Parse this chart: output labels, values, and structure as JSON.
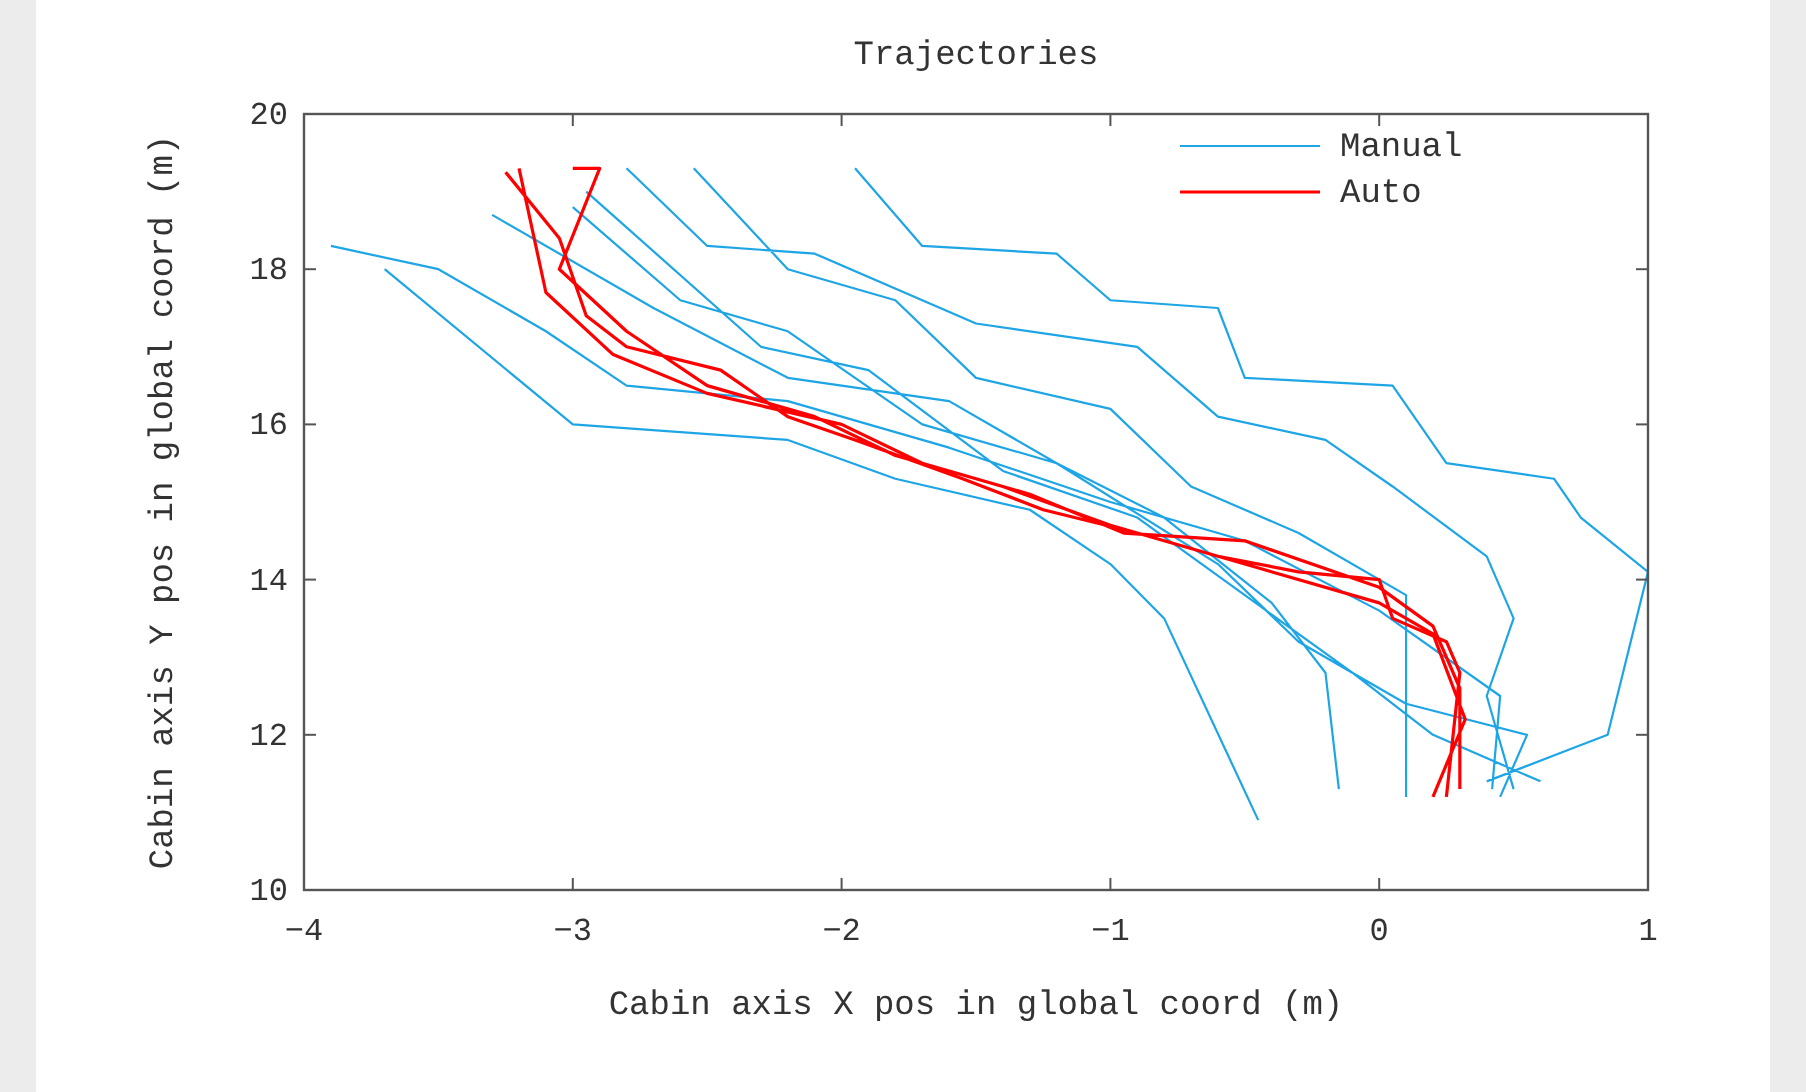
{
  "chart_data": {
    "type": "line",
    "title": "Trajectories",
    "xlabel": "Cabin axis X pos in global coord (m)",
    "ylabel": "Cabin axis Y pos in global coord (m)",
    "xlim": [
      -4,
      1
    ],
    "xticks": [
      -4,
      -3,
      -2,
      -1,
      0,
      1
    ],
    "ylim": [
      10,
      20
    ],
    "yticks": [
      10,
      12,
      14,
      16,
      18,
      20
    ],
    "grid": false,
    "legend": "top right",
    "line_style": "solid",
    "marker": "none",
    "series": [
      {
        "name": "Manual",
        "color": "#1ea5e6",
        "x": [
          -1.95,
          -1.7,
          -1.2,
          -1.0,
          -0.6,
          -0.5,
          0.05,
          0.25,
          0.65,
          0.75,
          1.0,
          0.85,
          0.7,
          0.4,
          null,
          -2.8,
          -2.5,
          -2.1,
          -1.5,
          -0.9,
          -0.6,
          -0.2,
          0.05,
          0.4,
          0.5,
          0.4,
          0.5,
          null,
          -3.9,
          -3.5,
          -3.1,
          -2.8,
          -2.2,
          -1.6,
          -1.0,
          -0.5,
          0.0,
          0.45,
          0.42,
          null,
          -3.7,
          -3.0,
          -2.2,
          -1.8,
          -1.3,
          -1.0,
          -0.8,
          -0.45,
          null,
          -3.3,
          -2.7,
          -2.2,
          -1.6,
          -1.2,
          -0.8,
          -0.4,
          -0.2,
          -0.15,
          null,
          -2.55,
          -2.2,
          -1.8,
          -1.5,
          -1.0,
          -0.7,
          -0.3,
          0.1,
          0.1,
          null,
          -3.0,
          -2.6,
          -2.2,
          -1.7,
          -1.2,
          -0.6,
          -0.3,
          0.1,
          0.55,
          0.45,
          null,
          -2.95,
          -2.3,
          -1.9,
          -1.4,
          -0.9,
          -0.5,
          -0.1,
          0.2,
          0.6
        ],
        "values": [
          19.3,
          18.3,
          18.2,
          17.6,
          17.5,
          16.6,
          16.5,
          15.5,
          15.3,
          14.8,
          14.1,
          12.0,
          11.8,
          11.4,
          null,
          19.3,
          18.3,
          18.2,
          17.3,
          17.0,
          16.1,
          15.8,
          15.2,
          14.3,
          13.5,
          12.5,
          11.3,
          null,
          18.3,
          18.0,
          17.2,
          16.5,
          16.3,
          15.7,
          15.0,
          14.5,
          13.6,
          12.5,
          11.3,
          null,
          18.0,
          16.0,
          15.8,
          15.3,
          14.9,
          14.2,
          13.5,
          10.9,
          null,
          18.7,
          17.5,
          16.6,
          16.3,
          15.5,
          14.8,
          13.7,
          12.8,
          11.3,
          null,
          19.3,
          18.0,
          17.6,
          16.6,
          16.2,
          15.2,
          14.6,
          13.8,
          11.2,
          null,
          18.8,
          17.6,
          17.2,
          16.0,
          15.5,
          14.2,
          13.2,
          12.4,
          12.0,
          11.2,
          null,
          19.0,
          17.0,
          16.7,
          15.4,
          14.8,
          13.8,
          12.8,
          12.0,
          11.4
        ]
      },
      {
        "name": "Auto",
        "color": "#ff0000",
        "x": [
          -3.25,
          -3.05,
          -2.95,
          -2.8,
          -2.45,
          -2.2,
          -1.95,
          -1.55,
          -1.25,
          -0.9,
          -0.6,
          -0.3,
          0.0,
          0.05,
          0.25,
          0.3,
          0.25,
          null,
          -3.2,
          -3.1,
          -2.85,
          -2.5,
          -2.0,
          -1.7,
          -1.3,
          -0.95,
          -0.5,
          0.0,
          0.2,
          0.3,
          0.3,
          null,
          -3.0,
          -2.9,
          -3.05,
          -2.8,
          -2.5,
          -2.1,
          -1.8,
          -1.4,
          -1.0,
          -0.5,
          0.0,
          0.2,
          0.32,
          0.2
        ],
        "values": [
          19.25,
          18.4,
          17.4,
          17.0,
          16.7,
          16.1,
          15.8,
          15.3,
          14.9,
          14.6,
          14.3,
          14.1,
          14.0,
          13.5,
          13.2,
          12.8,
          11.2,
          null,
          19.3,
          17.7,
          16.9,
          16.4,
          16.0,
          15.5,
          15.1,
          14.6,
          14.5,
          13.9,
          13.4,
          12.6,
          11.3,
          null,
          19.3,
          19.3,
          18.0,
          17.2,
          16.5,
          16.1,
          15.6,
          15.2,
          14.7,
          14.2,
          13.7,
          13.3,
          12.2,
          11.2
        ]
      }
    ]
  }
}
